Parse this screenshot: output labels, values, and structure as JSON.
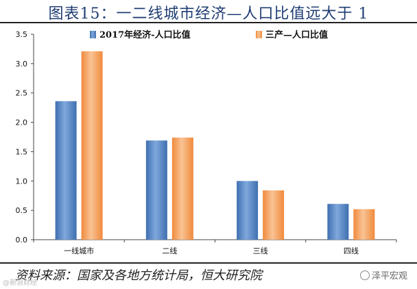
{
  "title": "图表15：一二线城市经济—人口比值远大于 1",
  "source": "资料来源：国家及各地方统计局，恒大研究院",
  "watermark": "泽平宏观",
  "watermark_left": "@新浪财经",
  "colors": {
    "series1": "#3f6fb0",
    "series2": "#f08a3c",
    "title": "#1f3d73"
  },
  "chart_data": {
    "type": "bar",
    "categories": [
      "一线城市",
      "二线",
      "三线",
      "四线"
    ],
    "series": [
      {
        "name": "2017年经济-人口比值",
        "values": [
          2.36,
          1.69,
          1.0,
          0.61
        ]
      },
      {
        "name": "三产—人口比值",
        "values": [
          3.21,
          1.74,
          0.84,
          0.52
        ]
      }
    ],
    "ylim": [
      0,
      3.5
    ],
    "yticks": [
      "0.0",
      "0.5",
      "1.0",
      "1.5",
      "2.0",
      "2.5",
      "3.0",
      "3.5"
    ],
    "grid": false,
    "legend_position": "top"
  }
}
